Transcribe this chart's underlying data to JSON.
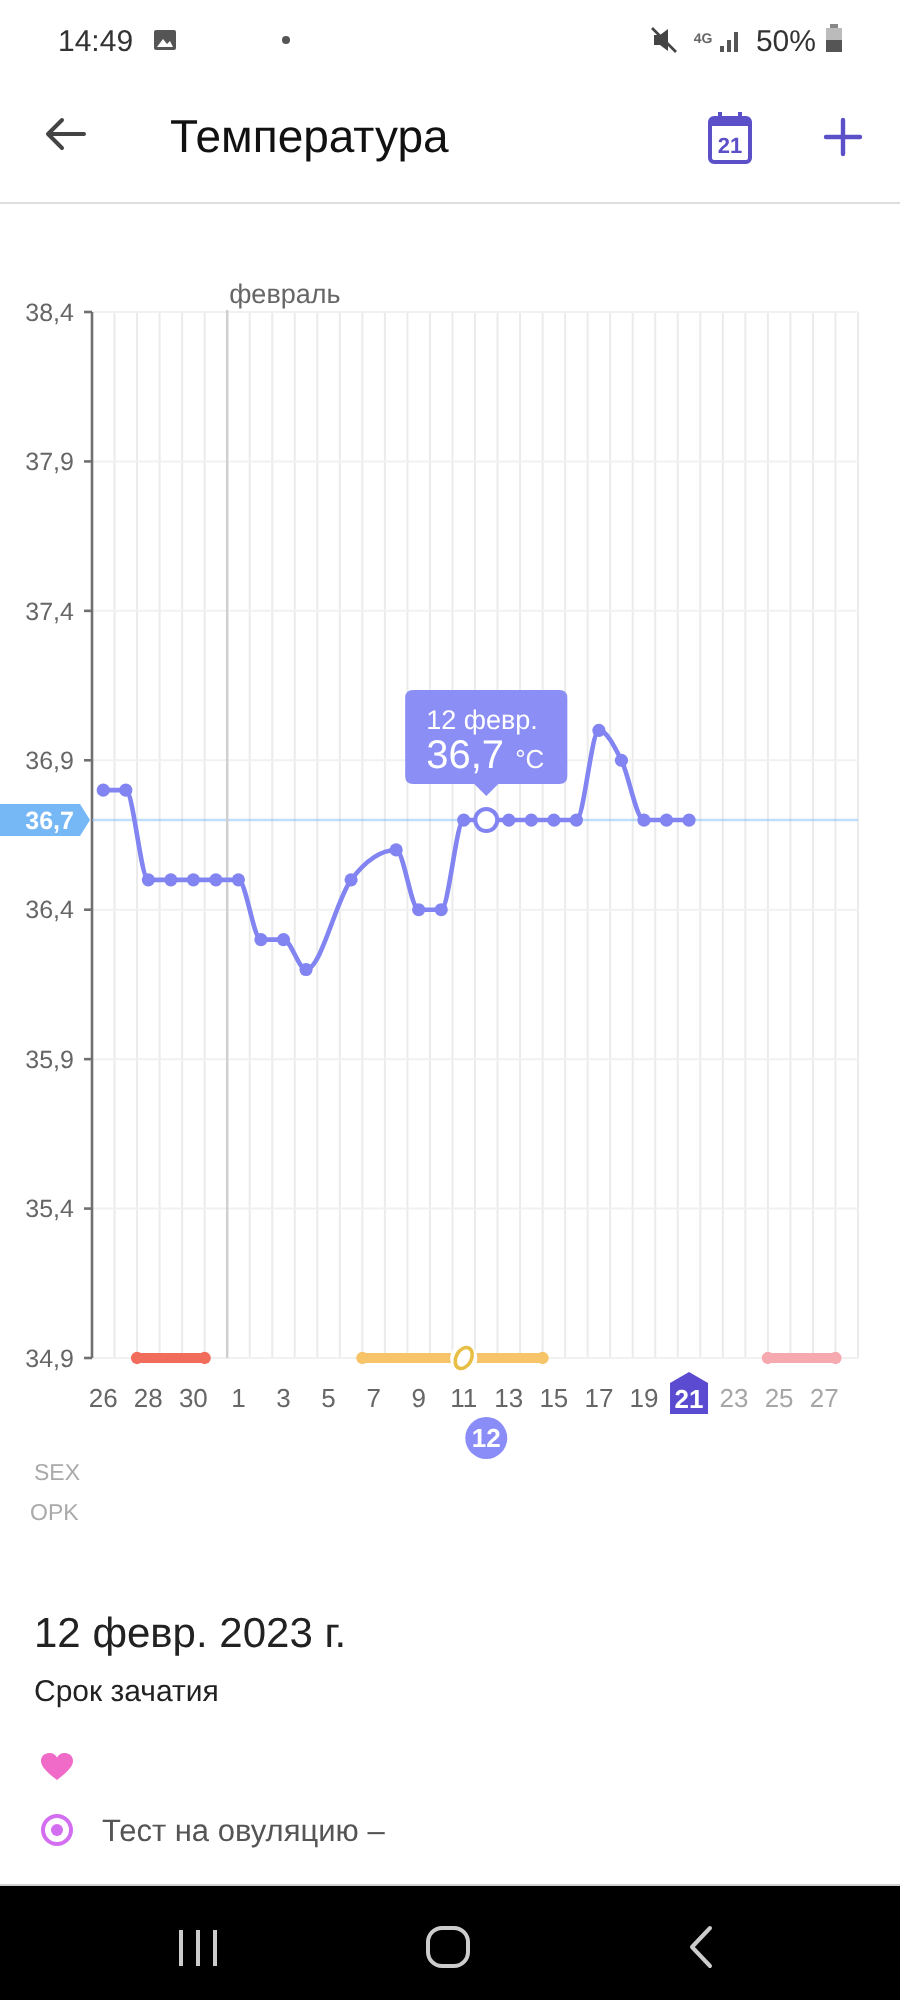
{
  "chart_data": {
    "type": "line",
    "title": "Температура",
    "series": [
      {
        "color": "#8184f1",
        "x": [
          "2023-01-26",
          "2023-01-27",
          "2023-01-28",
          "2023-01-29",
          "2023-01-30",
          "2023-01-31",
          "2023-02-01",
          "2023-02-02",
          "2023-02-03",
          "2023-02-04",
          "2023-02-06",
          "2023-02-08",
          "2023-02-09",
          "2023-02-10",
          "2023-02-11",
          "2023-02-12",
          "2023-02-13",
          "2023-02-14",
          "2023-02-15",
          "2023-02-16",
          "2023-02-17",
          "2023-02-18",
          "2023-02-19",
          "2023-02-20",
          "2023-02-21"
        ],
        "values": [
          36.8,
          36.8,
          36.5,
          36.5,
          36.5,
          36.5,
          36.5,
          36.3,
          36.3,
          36.2,
          36.5,
          36.6,
          36.4,
          36.4,
          36.7,
          36.7,
          36.7,
          36.7,
          36.7,
          36.7,
          37.0,
          36.9,
          36.7,
          36.7,
          36.7
        ]
      },
      {
        "type": "step",
        "color": "#f26c5c",
        "x": [
          "2023-01-27T12:00",
          "2023-01-30T12:00"
        ],
        "values": [
          34.9,
          34.9
        ]
      },
      {
        "type": "step",
        "color": "#f7c46a",
        "x": [
          "2023-02-06T12:00",
          "2023-02-14T12:00"
        ],
        "values": [
          34.9,
          34.9
        ]
      },
      {
        "type": "step",
        "color": "#f6aab0",
        "x": [
          "2023-02-24T12:00",
          "2023-02-27T12:00"
        ],
        "values": [
          34.9,
          34.9
        ]
      },
      {
        "type": "scatter",
        "color": "#e8bf45",
        "x": [
          "2023-02-11"
        ],
        "values": [
          34.9
        ]
      }
    ],
    "xlim": [
      "2023-01-25T12:00",
      "2023-02-28T12:00"
    ],
    "xticks": [
      {
        "value": "2023-01-26",
        "label": "26"
      },
      {
        "value": "2023-01-28",
        "label": "28"
      },
      {
        "value": "2023-01-30",
        "label": "30"
      },
      {
        "value": "2023-02-01",
        "label": "1"
      },
      {
        "value": "2023-02-03",
        "label": "3"
      },
      {
        "value": "2023-02-05",
        "label": "5"
      },
      {
        "value": "2023-02-07",
        "label": "7"
      },
      {
        "value": "2023-02-09",
        "label": "9"
      },
      {
        "value": "2023-02-11",
        "label": "11"
      },
      {
        "value": "2023-02-13",
        "label": "13"
      },
      {
        "value": "2023-02-15",
        "label": "15"
      },
      {
        "value": "2023-02-17",
        "label": "17"
      },
      {
        "value": "2023-02-19",
        "label": "19"
      },
      {
        "value": "2023-02-21",
        "label": "21"
      },
      {
        "value": "2023-02-23",
        "label": "23"
      },
      {
        "value": "2023-02-25",
        "label": "25"
      },
      {
        "value": "2023-02-27",
        "label": "27"
      }
    ],
    "ylim": [
      34.9,
      38.4
    ],
    "yticks": [
      {
        "value": 34.9,
        "label": "34,9"
      },
      {
        "value": 35.4,
        "label": "35,4"
      },
      {
        "value": 35.9,
        "label": "35,9"
      },
      {
        "value": 36.4,
        "label": "36,4"
      },
      {
        "value": 36.9,
        "label": "36,9"
      },
      {
        "value": 37.4,
        "label": "37,4"
      },
      {
        "value": 37.9,
        "label": "37,9"
      },
      {
        "value": 38.4,
        "label": "38,4"
      }
    ],
    "grid": true,
    "marker": "circle",
    "ref_lines": [
      {
        "axis": "y",
        "value": 36.7,
        "label": "36,7",
        "color": "#76b7f6"
      },
      {
        "axis": "x",
        "value": "2023-01-31T12:00",
        "label": "февраль",
        "color": "#cfcfcf"
      }
    ],
    "annotations": [
      "14:49",
      "4G",
      "50%",
      "21",
      "12 февр.",
      {
        "text": "36,7 °C",
        "x": "2023-02-12",
        "y": 36.7
      },
      "SEX",
      "OPK",
      "12",
      "12 февр. 2023 г.",
      "Срок зачатия",
      "Тест на овуляцию –"
    ]
  }
}
